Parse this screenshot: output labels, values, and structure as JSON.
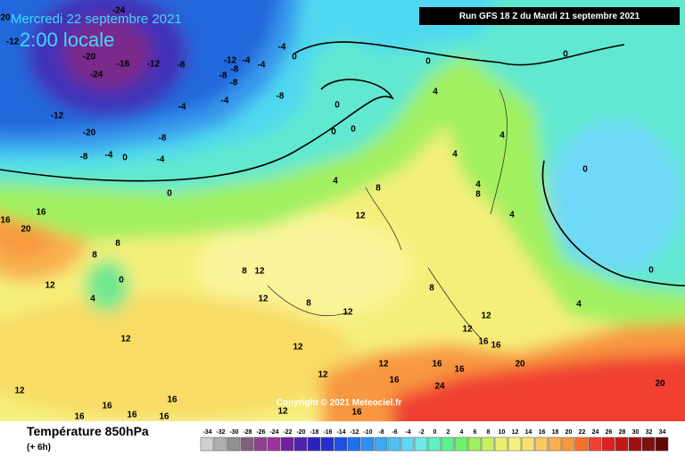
{
  "header": {
    "date": "Mercredi 22 septembre 2021",
    "time": "2:00 locale",
    "run": "Run GFS 18 Z du Mardi 21 septembre 2021",
    "copyright": "Copyright © 2021 Meteociel.fr"
  },
  "footer": {
    "title": "Température 850hPa",
    "lead": "(+ 6h)"
  },
  "contour_labels": [
    "20",
    "-12",
    "-20",
    "-16",
    "-12",
    "-8",
    "-24",
    "-12",
    "-4",
    "-8",
    "-8",
    "-8",
    "-4",
    "-4",
    "-24",
    "0",
    "-12",
    "-20",
    "-8",
    "-4",
    "-4",
    "-8",
    "-4",
    "-8",
    "0",
    "-4",
    "0",
    "0",
    "0",
    "0",
    "0",
    "0",
    "4",
    "4",
    "4",
    "4",
    "4",
    "4",
    "8",
    "8",
    "12",
    "16",
    "16",
    "20",
    "8",
    "8",
    "0",
    "12",
    "4",
    "8",
    "12",
    "12",
    "8",
    "8",
    "12",
    "12",
    "4",
    "0",
    "0",
    "12",
    "16",
    "16",
    "12",
    "12",
    "12",
    "16",
    "16",
    "20",
    "12",
    "16",
    "24",
    "20",
    "12",
    "16",
    "16",
    "16",
    "16",
    "16",
    "12",
    "16"
  ],
  "legend": {
    "labels": [
      -34,
      -32,
      -30,
      -28,
      -26,
      -24,
      -22,
      -20,
      -18,
      -16,
      -14,
      -12,
      -10,
      -8,
      -6,
      -4,
      -2,
      0,
      2,
      4,
      6,
      8,
      10,
      12,
      14,
      16,
      18,
      20,
      22,
      24,
      26,
      28,
      30,
      32,
      34
    ],
    "colors": [
      "#d0d0d0",
      "#b0b0b0",
      "#909090",
      "#806080",
      "#904090",
      "#a030a0",
      "#7020a0",
      "#5020b0",
      "#3020c0",
      "#2030d0",
      "#2050e0",
      "#2070f0",
      "#3090f0",
      "#40a8f0",
      "#50c0f0",
      "#60d8f8",
      "#70e8e8",
      "#60f0c0",
      "#60f090",
      "#70f070",
      "#a0f060",
      "#c8f060",
      "#e8f070",
      "#f8f080",
      "#f8e070",
      "#f8c860",
      "#f8b050",
      "#f89840",
      "#f87030",
      "#f04030",
      "#e02020",
      "#c01818",
      "#a01010",
      "#801010",
      "#600808"
    ]
  }
}
